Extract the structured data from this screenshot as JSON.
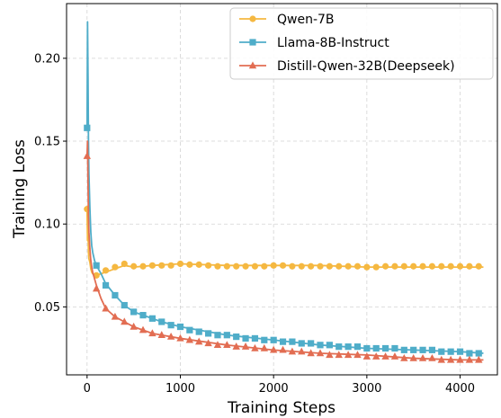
{
  "chart_data": {
    "type": "line",
    "title": "",
    "xlabel": "Training Steps",
    "ylabel": "Training Loss",
    "xlim": [
      -220,
      4400
    ],
    "ylim": [
      0.009,
      0.233
    ],
    "xticks": [
      0,
      1000,
      2000,
      3000,
      4000
    ],
    "xtick_labels": [
      "0",
      "1000",
      "2000",
      "3000",
      "4000"
    ],
    "yticks": [
      0.05,
      0.1,
      0.15,
      0.2
    ],
    "ytick_labels": [
      "0.05",
      "0.10",
      "0.15",
      "0.20"
    ],
    "grid": true,
    "legend_position": "top-right",
    "series": [
      {
        "name": "Qwen-7B",
        "color": "#F5B841",
        "marker": "circle",
        "line_x": [
          0,
          5,
          10,
          15,
          20,
          30,
          40,
          50,
          60,
          80,
          100,
          150,
          200,
          300,
          400,
          500,
          700,
          1000,
          1500,
          2000,
          2500,
          3000,
          3500,
          4000,
          4250
        ],
        "line_y": [
          0.109,
          0.09,
          0.1,
          0.083,
          0.079,
          0.077,
          0.073,
          0.071,
          0.07,
          0.069,
          0.069,
          0.07,
          0.071,
          0.073,
          0.075,
          0.074,
          0.075,
          0.076,
          0.075,
          0.075,
          0.075,
          0.074,
          0.074,
          0.074,
          0.074
        ],
        "marker_x": [
          0,
          100,
          200,
          300,
          400,
          500,
          600,
          700,
          800,
          900,
          1000,
          1100,
          1200,
          1300,
          1400,
          1500,
          1600,
          1700,
          1800,
          1900,
          2000,
          2100,
          2200,
          2300,
          2400,
          2500,
          2600,
          2700,
          2800,
          2900,
          3000,
          3100,
          3200,
          3300,
          3400,
          3500,
          3600,
          3700,
          3800,
          3900,
          4000,
          4100,
          4200
        ],
        "marker_y": [
          0.109,
          0.069,
          0.072,
          0.074,
          0.076,
          0.0745,
          0.0745,
          0.075,
          0.075,
          0.075,
          0.076,
          0.0755,
          0.0755,
          0.075,
          0.0745,
          0.0745,
          0.0745,
          0.0745,
          0.0745,
          0.0745,
          0.075,
          0.075,
          0.0745,
          0.0745,
          0.0745,
          0.0745,
          0.0745,
          0.0745,
          0.0745,
          0.0745,
          0.074,
          0.074,
          0.0745,
          0.0745,
          0.0745,
          0.0745,
          0.0745,
          0.0745,
          0.0745,
          0.0745,
          0.0745,
          0.0745,
          0.0745
        ]
      },
      {
        "name": "Llama-8B-Instruct",
        "color": "#4FADC9",
        "marker": "square",
        "line_x": [
          0,
          5,
          10,
          15,
          20,
          30,
          40,
          50,
          60,
          80,
          100,
          150,
          200,
          300,
          400,
          500,
          600,
          700,
          800,
          1000,
          1500,
          2000,
          2500,
          3000,
          3500,
          4000,
          4250
        ],
        "line_y": [
          0.158,
          0.222,
          0.19,
          0.15,
          0.13,
          0.11,
          0.095,
          0.087,
          0.083,
          0.078,
          0.075,
          0.07,
          0.064,
          0.057,
          0.051,
          0.047,
          0.045,
          0.043,
          0.041,
          0.038,
          0.033,
          0.03,
          0.027,
          0.025,
          0.024,
          0.023,
          0.022
        ],
        "marker_x": [
          0,
          100,
          200,
          300,
          400,
          500,
          600,
          700,
          800,
          900,
          1000,
          1100,
          1200,
          1300,
          1400,
          1500,
          1600,
          1700,
          1800,
          1900,
          2000,
          2100,
          2200,
          2300,
          2400,
          2500,
          2600,
          2700,
          2800,
          2900,
          3000,
          3100,
          3200,
          3300,
          3400,
          3500,
          3600,
          3700,
          3800,
          3900,
          4000,
          4100,
          4200
        ],
        "marker_y": [
          0.158,
          0.075,
          0.063,
          0.057,
          0.051,
          0.047,
          0.045,
          0.043,
          0.041,
          0.039,
          0.038,
          0.036,
          0.035,
          0.034,
          0.033,
          0.033,
          0.032,
          0.031,
          0.031,
          0.03,
          0.03,
          0.029,
          0.029,
          0.028,
          0.028,
          0.027,
          0.027,
          0.026,
          0.026,
          0.026,
          0.025,
          0.025,
          0.025,
          0.025,
          0.024,
          0.024,
          0.024,
          0.024,
          0.023,
          0.023,
          0.023,
          0.022,
          0.022
        ]
      },
      {
        "name": "Distill-Qwen-32B(Deepseek)",
        "color": "#E26D52",
        "marker": "triangle",
        "line_x": [
          0,
          5,
          10,
          15,
          20,
          30,
          40,
          50,
          60,
          80,
          100,
          150,
          200,
          300,
          400,
          500,
          600,
          700,
          800,
          1000,
          1500,
          2000,
          2500,
          3000,
          3500,
          4000,
          4250
        ],
        "line_y": [
          0.141,
          0.15,
          0.125,
          0.105,
          0.095,
          0.085,
          0.078,
          0.074,
          0.071,
          0.067,
          0.063,
          0.055,
          0.049,
          0.044,
          0.041,
          0.038,
          0.036,
          0.034,
          0.033,
          0.031,
          0.027,
          0.024,
          0.022,
          0.021,
          0.019,
          0.018,
          0.018
        ],
        "marker_x": [
          0,
          100,
          200,
          300,
          400,
          500,
          600,
          700,
          800,
          900,
          1000,
          1100,
          1200,
          1300,
          1400,
          1500,
          1600,
          1700,
          1800,
          1900,
          2000,
          2100,
          2200,
          2300,
          2400,
          2500,
          2600,
          2700,
          2800,
          2900,
          3000,
          3100,
          3200,
          3300,
          3400,
          3500,
          3600,
          3700,
          3800,
          3900,
          4000,
          4100,
          4200
        ],
        "marker_y": [
          0.141,
          0.061,
          0.049,
          0.044,
          0.041,
          0.038,
          0.036,
          0.034,
          0.033,
          0.032,
          0.031,
          0.03,
          0.029,
          0.028,
          0.027,
          0.027,
          0.026,
          0.026,
          0.025,
          0.025,
          0.024,
          0.024,
          0.023,
          0.023,
          0.022,
          0.022,
          0.021,
          0.021,
          0.021,
          0.021,
          0.02,
          0.02,
          0.02,
          0.02,
          0.019,
          0.019,
          0.019,
          0.019,
          0.018,
          0.018,
          0.018,
          0.018,
          0.018
        ]
      }
    ]
  }
}
